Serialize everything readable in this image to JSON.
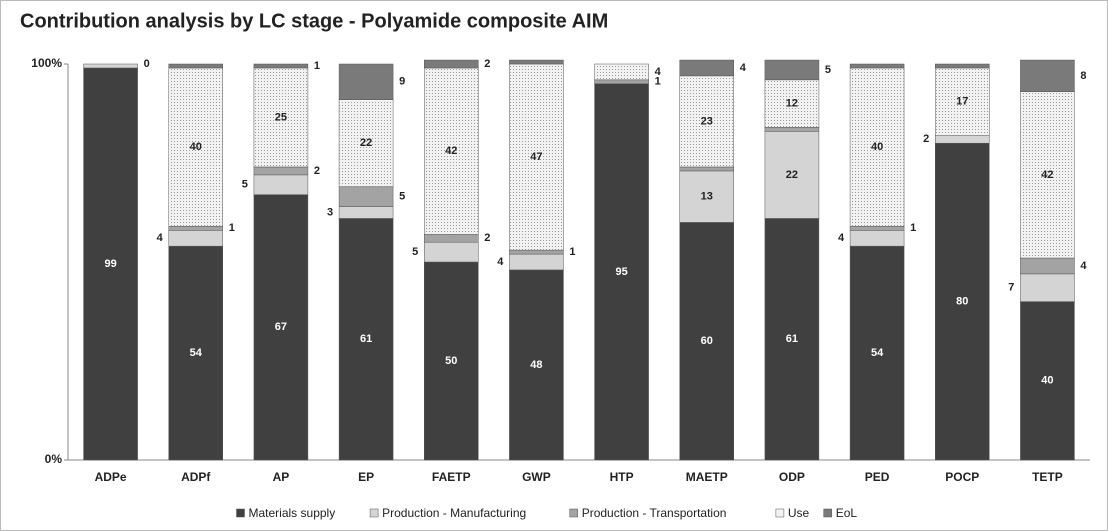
{
  "chart_data": {
    "type": "stacked_bar_100",
    "title": "Contribution analysis by LC stage - Polyamide composite AIM",
    "categories": [
      "ADPe",
      "ADPf",
      "AP",
      "EP",
      "FAETP",
      "GWP",
      "HTP",
      "MAETP",
      "ODP",
      "PED",
      "POCP",
      "TETP"
    ],
    "ylim": [
      0,
      100
    ],
    "yticks": [
      {
        "value": 0,
        "label": "0%"
      },
      {
        "value": 100,
        "label": "100%"
      }
    ],
    "series": [
      {
        "name": "Materials supply",
        "color": "#404040",
        "values": [
          99,
          54,
          67,
          61,
          50,
          48,
          95,
          60,
          61,
          54,
          80,
          40
        ],
        "value_labels": [
          "99",
          "54",
          "67",
          "61",
          "50",
          "48",
          "95",
          "60",
          "61",
          "54",
          "80",
          "40"
        ]
      },
      {
        "name": "Production - Manufacturing",
        "color": "#d4d4d4",
        "values": [
          1,
          4,
          5,
          3,
          5,
          4,
          0,
          13,
          22,
          4,
          2,
          7
        ],
        "value_labels": [
          null,
          "4",
          "5",
          "3",
          "5",
          "4",
          null,
          "13",
          "22",
          "4",
          "2",
          "7"
        ]
      },
      {
        "name": "Production - Transportation",
        "color": "#a3a3a3",
        "values": [
          0,
          1,
          2,
          5,
          2,
          1,
          1,
          1,
          1,
          1,
          0,
          4
        ],
        "value_labels": [
          null,
          "1",
          "2",
          "5",
          "2",
          "1",
          "1",
          null,
          null,
          "1",
          null,
          "4"
        ]
      },
      {
        "name": "Use",
        "color": "#f2f2f2",
        "values": [
          0,
          40,
          25,
          22,
          42,
          47,
          4,
          23,
          12,
          40,
          17,
          42
        ],
        "value_labels": [
          null,
          "40",
          "25",
          "22",
          "42",
          "47",
          "4",
          "23",
          "12",
          "40",
          "17",
          "42"
        ]
      },
      {
        "name": "EoL",
        "color": "#7a7a7a",
        "values": [
          0,
          1,
          1,
          9,
          2,
          1,
          0,
          4,
          5,
          1,
          1,
          8
        ],
        "value_labels": [
          "0",
          null,
          "1",
          "9",
          "2",
          null,
          null,
          "4",
          "5",
          null,
          null,
          "8"
        ]
      }
    ]
  }
}
